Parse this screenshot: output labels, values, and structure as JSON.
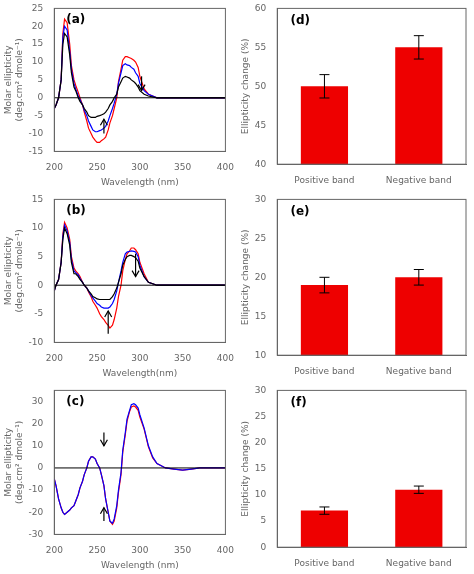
{
  "chart_data": [
    {
      "type": "line",
      "annotation": "(a)",
      "x_label": "Wavelength (nm)",
      "y_label": "Molar ellipticity\n(deg.cm² dmole⁻¹)",
      "x": [
        200,
        202,
        205,
        208,
        210,
        212,
        215,
        218,
        220,
        223,
        225,
        228,
        230,
        233,
        235,
        238,
        240,
        243,
        245,
        248,
        250,
        253,
        255,
        258,
        260,
        263,
        265,
        268,
        270,
        273,
        275,
        278,
        280,
        283,
        285,
        288,
        290,
        293,
        295,
        298,
        300,
        305,
        310,
        320,
        330,
        340,
        350,
        360,
        370,
        380,
        390,
        400
      ],
      "series": [
        {
          "color": "black",
          "values": [
            -3,
            -2,
            0,
            5,
            15,
            18,
            17,
            12,
            7,
            3,
            2,
            0,
            -1,
            -2,
            -3,
            -4,
            -5,
            -5.5,
            -5.5,
            -5.5,
            -5.2,
            -5,
            -4.8,
            -4.5,
            -4,
            -3,
            -2,
            -1,
            0,
            1,
            3,
            4.5,
            5.5,
            6,
            5.8,
            5.5,
            5,
            4.5,
            4,
            3,
            2,
            1,
            0.5,
            0,
            0,
            0,
            0,
            0,
            0,
            0,
            0,
            0
          ]
        },
        {
          "color": "blue",
          "values": [
            -3,
            -2,
            0,
            5,
            17,
            20,
            19,
            13,
            8,
            4,
            2.5,
            0.5,
            -0.5,
            -2,
            -3.5,
            -5,
            -6.5,
            -8,
            -9,
            -9.5,
            -9.5,
            -9.2,
            -9,
            -8.5,
            -8,
            -6.5,
            -5,
            -3,
            -1.5,
            1,
            4,
            7,
            9,
            9.5,
            9.2,
            9,
            8.5,
            8,
            7,
            6,
            4,
            2,
            1,
            0,
            0,
            0,
            0,
            0,
            0,
            0,
            0,
            0
          ]
        },
        {
          "color": "red",
          "values": [
            -3,
            -2,
            0,
            5,
            18,
            22,
            21,
            15,
            9,
            5,
            3.5,
            1.5,
            0,
            -2,
            -4,
            -6.5,
            -8.5,
            -10,
            -11,
            -12,
            -12.5,
            -12.5,
            -12,
            -11.5,
            -11,
            -9,
            -7,
            -5,
            -3,
            0,
            4.5,
            8,
            10.5,
            11.5,
            11.5,
            11.2,
            11,
            10.5,
            10,
            8.5,
            6,
            2.5,
            1,
            0,
            0,
            0,
            0,
            0,
            0,
            0,
            0,
            0
          ]
        }
      ],
      "hlines": [
        0
      ],
      "arrows": [
        {
          "x": 258,
          "y_start": -10,
          "y_end": -6
        },
        {
          "x": 302,
          "y_start": 6,
          "y_end": 2
        }
      ],
      "xlim": [
        200,
        400
      ],
      "xticks": [
        200,
        250,
        300,
        350,
        400
      ],
      "ylim": [
        -15,
        25
      ],
      "yticks": [
        -15,
        -10,
        -5,
        0,
        5,
        10,
        15,
        20,
        25
      ],
      "grid": false
    },
    {
      "type": "line",
      "annotation": "(b)",
      "x_label": "Wavelength(nm)",
      "y_label": "Molar ellipticity\n(deg.cm² dmole⁻¹)",
      "x": [
        200,
        202,
        205,
        208,
        210,
        212,
        215,
        218,
        220,
        223,
        225,
        228,
        230,
        233,
        235,
        238,
        240,
        243,
        245,
        248,
        250,
        253,
        255,
        258,
        260,
        263,
        265,
        268,
        270,
        273,
        275,
        278,
        280,
        283,
        285,
        288,
        290,
        293,
        295,
        298,
        300,
        305,
        310,
        320,
        330,
        340,
        350,
        360,
        370,
        380,
        390,
        400
      ],
      "series": [
        {
          "color": "black",
          "values": [
            -1,
            0,
            1,
            4,
            8,
            10,
            9,
            7,
            4,
            2,
            2,
            1.5,
            1,
            0.5,
            0,
            -0.5,
            -1,
            -1.5,
            -2,
            -2.2,
            -2.4,
            -2.5,
            -2.5,
            -2.5,
            -2.5,
            -2.5,
            -2.5,
            -2,
            -1.5,
            -0.5,
            0.5,
            2,
            3.5,
            4.5,
            5,
            5.2,
            5.2,
            5,
            4.8,
            4.2,
            3,
            1.5,
            0.5,
            0,
            0,
            0,
            0,
            0,
            0,
            0,
            0,
            0
          ]
        },
        {
          "color": "blue",
          "values": [
            -1,
            0,
            1,
            4,
            8.5,
            10.5,
            9.5,
            7.5,
            4.5,
            2.5,
            2.2,
            1.8,
            1.2,
            0.5,
            0,
            -0.5,
            -1,
            -1.8,
            -2.2,
            -2.8,
            -3.2,
            -3.5,
            -3.8,
            -4,
            -4,
            -4,
            -3.8,
            -3.2,
            -2.5,
            -1,
            0.5,
            2.5,
            4,
            5.5,
            5.8,
            5.9,
            6,
            5.9,
            5.8,
            5,
            3.5,
            1.5,
            0.5,
            0,
            0,
            0,
            0,
            0,
            0,
            0,
            0,
            0
          ]
        },
        {
          "color": "red",
          "values": [
            -1,
            0,
            1,
            4,
            9,
            11,
            10,
            8,
            5,
            3,
            2.5,
            2,
            1.5,
            0.5,
            0,
            -0.5,
            -1.2,
            -2,
            -2.8,
            -3.5,
            -4,
            -5,
            -5.5,
            -6,
            -6.5,
            -7,
            -7.5,
            -7,
            -6,
            -4,
            -2,
            0,
            2.5,
            4.5,
            5.5,
            6,
            6.5,
            6.5,
            6.2,
            5.5,
            4,
            2,
            0.5,
            0,
            0,
            0,
            0,
            0,
            0,
            0,
            0,
            0
          ]
        }
      ],
      "hlines": [
        0
      ],
      "arrows": [
        {
          "x": 263,
          "y_start": -8.5,
          "y_end": -4.5
        },
        {
          "x": 295,
          "y_start": 5.5,
          "y_end": 1.5
        }
      ],
      "xlim": [
        200,
        400
      ],
      "xticks": [
        200,
        250,
        300,
        350,
        400
      ],
      "ylim": [
        -10,
        15
      ],
      "yticks": [
        -10,
        -5,
        0,
        5,
        10,
        15
      ],
      "grid": false
    },
    {
      "type": "line",
      "annotation": "(c)",
      "x_label": "Wavelength (nm)",
      "y_label": "Molar ellipticity\n(deg.cm² dmole⁻¹)",
      "x": [
        200,
        202,
        205,
        208,
        210,
        212,
        215,
        218,
        220,
        223,
        225,
        228,
        230,
        233,
        235,
        238,
        240,
        243,
        245,
        248,
        250,
        253,
        255,
        258,
        260,
        263,
        265,
        268,
        270,
        273,
        275,
        278,
        280,
        283,
        285,
        288,
        290,
        293,
        295,
        298,
        300,
        305,
        310,
        315,
        320,
        330,
        340,
        350,
        360,
        370,
        380,
        390,
        400
      ],
      "series": [
        {
          "color": "blue",
          "values": [
            -5,
            -8,
            -14,
            -18,
            -20,
            -21,
            -20,
            -19,
            -18,
            -17,
            -15,
            -12,
            -9,
            -6,
            -3,
            0,
            3,
            5,
            5,
            4,
            2,
            0,
            -3,
            -8,
            -14,
            -20,
            -24,
            -25,
            -23,
            -17,
            -10,
            -2,
            8,
            16,
            22,
            26,
            28.5,
            29,
            28.5,
            27,
            24,
            18,
            10,
            5,
            2,
            0,
            -0.5,
            -1,
            -0.5,
            0,
            0,
            0,
            0
          ]
        },
        {
          "color": "red",
          "values": [
            -5,
            -8,
            -14,
            -18,
            -20,
            -21,
            -20,
            -19,
            -18,
            -17,
            -15,
            -12,
            -9,
            -6,
            -3,
            0,
            3,
            5,
            5,
            4,
            2,
            0,
            -3,
            -8,
            -14,
            -20,
            -24,
            -25.5,
            -24,
            -18,
            -11,
            -3,
            7,
            15,
            21,
            25.5,
            27.5,
            28,
            27.5,
            26,
            23,
            17.5,
            9.5,
            4.5,
            2,
            0,
            -0.5,
            -1,
            -0.5,
            0,
            0,
            0,
            0
          ]
        }
      ],
      "hlines": [
        0
      ],
      "arrows": [
        {
          "x": 258,
          "y_start": -24,
          "y_end": -18
        },
        {
          "x": 258,
          "y_start": 16,
          "y_end": 10
        }
      ],
      "xlim": [
        200,
        400
      ],
      "xticks": [
        200,
        250,
        300,
        350,
        400
      ],
      "ylim": [
        -30,
        35
      ],
      "yticks": [
        -30,
        -20,
        -10,
        0,
        10,
        20,
        30
      ],
      "grid": false
    },
    {
      "type": "bar",
      "annotation": "(d)",
      "y_label": "Ellipticity change (%)",
      "categories": [
        "Positive band",
        "Negative band"
      ],
      "series": [
        {
          "color": "#EE0000",
          "values": [
            50,
            55
          ],
          "errors": [
            1.5,
            1.5
          ]
        }
      ],
      "ylim": [
        40,
        60
      ],
      "yticks": [
        40,
        45,
        50,
        55,
        60
      ],
      "grid": false
    },
    {
      "type": "bar",
      "annotation": "(e)",
      "y_label": "Ellipticity change (%)",
      "categories": [
        "Positive band",
        "Negative band"
      ],
      "series": [
        {
          "color": "#EE0000",
          "values": [
            19,
            20
          ],
          "errors": [
            1.0,
            1.0
          ]
        }
      ],
      "ylim": [
        10,
        30
      ],
      "yticks": [
        10,
        15,
        20,
        25,
        30
      ],
      "grid": false
    },
    {
      "type": "bar",
      "annotation": "(f)",
      "y_label": "Ellipticity change (%)",
      "categories": [
        "Positive band",
        "Negative band"
      ],
      "series": [
        {
          "color": "#EE0000",
          "values": [
            7,
            11
          ],
          "errors": [
            0.7,
            0.7
          ]
        }
      ],
      "ylim": [
        0,
        30
      ],
      "yticks": [
        0,
        5,
        10,
        15,
        20,
        25,
        30
      ],
      "grid": false
    }
  ]
}
